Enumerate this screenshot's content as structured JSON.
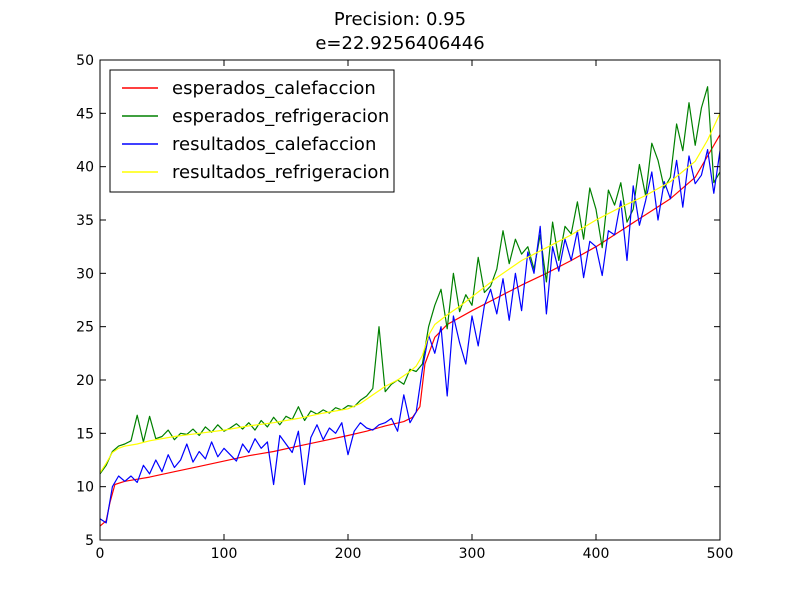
{
  "chart_data": {
    "type": "line",
    "title": "Precision: 0.95",
    "subtitle": "e=22.9256406446",
    "xlabel": "",
    "ylabel": "",
    "xlim": [
      0,
      500
    ],
    "ylim": [
      5,
      50
    ],
    "xticks": [
      0,
      100,
      200,
      300,
      400,
      500
    ],
    "yticks": [
      5,
      10,
      15,
      20,
      25,
      30,
      35,
      40,
      45,
      50
    ],
    "grid": false,
    "legend_position": "top-left",
    "series": [
      {
        "name": "esperados_calefaccion",
        "color": "#ff0000",
        "x": [
          0,
          5,
          8,
          12,
          20,
          40,
          60,
          80,
          100,
          120,
          140,
          160,
          180,
          200,
          215,
          230,
          245,
          252,
          258,
          262,
          270,
          280,
          300,
          320,
          340,
          360,
          380,
          400,
          420,
          440,
          460,
          480,
          490,
          500
        ],
        "y": [
          6.3,
          6.8,
          8.5,
          10.2,
          10.5,
          10.9,
          11.4,
          11.9,
          12.4,
          12.9,
          13.3,
          13.8,
          14.3,
          14.8,
          15.2,
          15.7,
          16.1,
          16.5,
          17.5,
          21.5,
          24,
          25.2,
          26.5,
          27.7,
          28.9,
          30,
          31.2,
          32.5,
          34,
          35.5,
          37,
          39,
          41,
          43
        ]
      },
      {
        "name": "esperados_refrigeracion",
        "color": "#008000",
        "x": [
          0,
          5,
          10,
          15,
          20,
          25,
          30,
          35,
          40,
          45,
          50,
          55,
          60,
          65,
          70,
          75,
          80,
          85,
          90,
          95,
          100,
          105,
          110,
          115,
          120,
          125,
          130,
          135,
          140,
          145,
          150,
          155,
          160,
          165,
          170,
          175,
          180,
          185,
          190,
          195,
          200,
          205,
          210,
          215,
          220,
          225,
          230,
          235,
          240,
          245,
          250,
          255,
          260,
          265,
          270,
          275,
          280,
          285,
          290,
          295,
          300,
          305,
          310,
          315,
          320,
          325,
          330,
          335,
          340,
          345,
          350,
          355,
          360,
          365,
          370,
          375,
          380,
          385,
          390,
          395,
          400,
          405,
          410,
          415,
          420,
          425,
          430,
          435,
          440,
          445,
          450,
          455,
          460,
          465,
          470,
          475,
          480,
          485,
          490,
          495,
          500
        ],
        "y": [
          11.2,
          12,
          13.3,
          13.8,
          14,
          14.3,
          16.7,
          14.2,
          16.6,
          14.5,
          14.7,
          15.3,
          14.4,
          15,
          14.9,
          15.4,
          14.8,
          15.6,
          15.1,
          15.8,
          15.2,
          15.5,
          15.9,
          15.4,
          16,
          15.3,
          16.2,
          15.6,
          16.5,
          15.8,
          16.6,
          16.3,
          17.5,
          16.2,
          17.1,
          16.8,
          17.2,
          16.9,
          17.4,
          17.2,
          17.6,
          17.5,
          18.1,
          18.5,
          19.2,
          25,
          18.9,
          19.6,
          20,
          19.6,
          21,
          20.8,
          21.5,
          25,
          27,
          28.5,
          24.8,
          30,
          26.4,
          28,
          27,
          31.5,
          28.2,
          28.8,
          30.4,
          34,
          30.9,
          33.2,
          31.8,
          32.5,
          30.4,
          33.6,
          29.2,
          34.8,
          31.2,
          34.4,
          33.7,
          36.7,
          33.2,
          38,
          36,
          32.4,
          37.8,
          36.4,
          38.5,
          34.8,
          36,
          40.2,
          37.3,
          42.2,
          40.6,
          38,
          39,
          44,
          41.5,
          46,
          42,
          45.5,
          47.5,
          38.5,
          39.5
        ]
      },
      {
        "name": "resultados_calefaccion",
        "color": "#0000ff",
        "x": [
          0,
          5,
          10,
          15,
          20,
          25,
          30,
          35,
          40,
          45,
          50,
          55,
          60,
          65,
          70,
          75,
          80,
          85,
          90,
          95,
          100,
          105,
          110,
          115,
          120,
          125,
          130,
          135,
          140,
          145,
          150,
          155,
          160,
          165,
          170,
          175,
          180,
          185,
          190,
          195,
          200,
          205,
          210,
          215,
          220,
          225,
          230,
          235,
          240,
          245,
          250,
          255,
          260,
          265,
          270,
          275,
          280,
          285,
          290,
          295,
          300,
          305,
          310,
          315,
          320,
          325,
          330,
          335,
          340,
          345,
          350,
          355,
          360,
          365,
          370,
          375,
          380,
          385,
          390,
          395,
          400,
          405,
          410,
          415,
          420,
          425,
          430,
          435,
          440,
          445,
          450,
          455,
          460,
          465,
          470,
          475,
          480,
          485,
          490,
          495,
          500
        ],
        "y": [
          7,
          6.6,
          10,
          11,
          10.5,
          11,
          10.4,
          12,
          11.2,
          12.5,
          11.4,
          13,
          11.8,
          12.5,
          14,
          12.3,
          13.3,
          12.6,
          14.2,
          12.8,
          13.6,
          13,
          12.4,
          14,
          13.2,
          14.5,
          13.6,
          14.2,
          10.2,
          14.8,
          14,
          13.2,
          15.2,
          10.2,
          14.6,
          15.8,
          14.4,
          15.5,
          15,
          16,
          13,
          15.2,
          16,
          15.5,
          15.3,
          15.8,
          16,
          16.4,
          15.2,
          18.6,
          16,
          17,
          21,
          24.2,
          22.5,
          25,
          18.5,
          26,
          23.5,
          21.5,
          26,
          23.2,
          27,
          28.5,
          26.2,
          29.5,
          25.6,
          30,
          26.5,
          32,
          30,
          34.4,
          26.2,
          32.5,
          30.2,
          33.2,
          31.2,
          34,
          29.6,
          33,
          32.5,
          29.8,
          34,
          33.6,
          36.8,
          31.2,
          38.2,
          34.5,
          36.8,
          39.5,
          35,
          38.6,
          37,
          40.6,
          36.2,
          41,
          38.4,
          39.2,
          41.6,
          37.5,
          41.5
        ]
      },
      {
        "name": "resultados_refrigeracion",
        "color": "#ffff00",
        "x": [
          0,
          5,
          10,
          15,
          20,
          30,
          40,
          60,
          80,
          100,
          120,
          140,
          160,
          180,
          200,
          210,
          220,
          230,
          240,
          250,
          255,
          260,
          265,
          270,
          280,
          290,
          300,
          320,
          340,
          360,
          380,
          400,
          420,
          440,
          460,
          480,
          490,
          500
        ],
        "y": [
          11.3,
          12.2,
          13.2,
          13.6,
          13.8,
          14,
          14.3,
          14.7,
          15,
          15.3,
          15.7,
          16,
          16.4,
          16.9,
          17.3,
          17.8,
          18.6,
          19.4,
          20,
          20.8,
          21.3,
          22.3,
          24.2,
          25.2,
          26.1,
          26.9,
          27.8,
          29.6,
          31.2,
          32.4,
          33.6,
          35,
          36.2,
          37.3,
          38.6,
          40.5,
          42.5,
          45
        ]
      }
    ]
  }
}
